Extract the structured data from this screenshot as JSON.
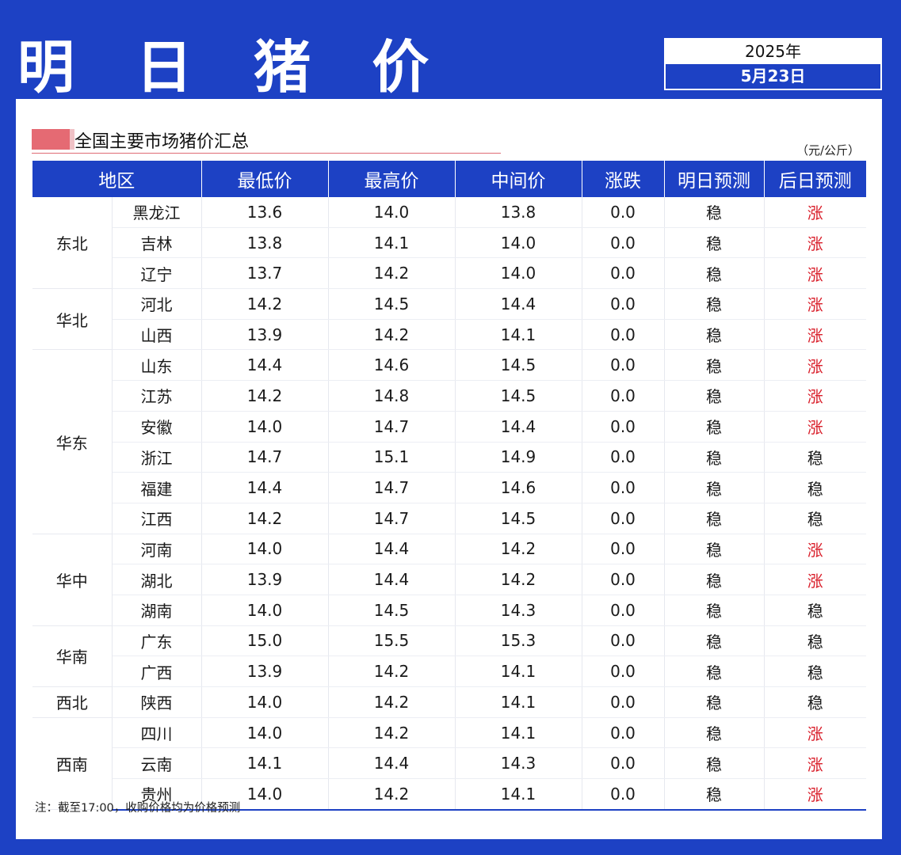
{
  "header": {
    "title": "明 日 猪 价",
    "date_year": "2025年",
    "date_day": "5月23日"
  },
  "section": {
    "subtitle": "全国主要市场猪价汇总",
    "unit": "（元/公斤）"
  },
  "table": {
    "headers": [
      "地区",
      "最低价",
      "最高价",
      "中间价",
      "涨跌",
      "明日预测",
      "后日预测"
    ],
    "rows": [
      {
        "region": "东北",
        "span": 3,
        "province": "黑龙江",
        "low": "13.6",
        "high": "14.0",
        "mid": "13.8",
        "change": "0.0",
        "tomorrow": "稳",
        "after": "涨"
      },
      {
        "province": "吉林",
        "low": "13.8",
        "high": "14.1",
        "mid": "14.0",
        "change": "0.0",
        "tomorrow": "稳",
        "after": "涨"
      },
      {
        "province": "辽宁",
        "low": "13.7",
        "high": "14.2",
        "mid": "14.0",
        "change": "0.0",
        "tomorrow": "稳",
        "after": "涨"
      },
      {
        "region": "华北",
        "span": 2,
        "province": "河北",
        "low": "14.2",
        "high": "14.5",
        "mid": "14.4",
        "change": "0.0",
        "tomorrow": "稳",
        "after": "涨"
      },
      {
        "province": "山西",
        "low": "13.9",
        "high": "14.2",
        "mid": "14.1",
        "change": "0.0",
        "tomorrow": "稳",
        "after": "涨"
      },
      {
        "region": "华东",
        "span": 6,
        "province": "山东",
        "low": "14.4",
        "high": "14.6",
        "mid": "14.5",
        "change": "0.0",
        "tomorrow": "稳",
        "after": "涨"
      },
      {
        "province": "江苏",
        "low": "14.2",
        "high": "14.8",
        "mid": "14.5",
        "change": "0.0",
        "tomorrow": "稳",
        "after": "涨"
      },
      {
        "province": "安徽",
        "low": "14.0",
        "high": "14.7",
        "mid": "14.4",
        "change": "0.0",
        "tomorrow": "稳",
        "after": "涨"
      },
      {
        "province": "浙江",
        "low": "14.7",
        "high": "15.1",
        "mid": "14.9",
        "change": "0.0",
        "tomorrow": "稳",
        "after": "稳"
      },
      {
        "province": "福建",
        "low": "14.4",
        "high": "14.7",
        "mid": "14.6",
        "change": "0.0",
        "tomorrow": "稳",
        "after": "稳"
      },
      {
        "province": "江西",
        "low": "14.2",
        "high": "14.7",
        "mid": "14.5",
        "change": "0.0",
        "tomorrow": "稳",
        "after": "稳"
      },
      {
        "region": "华中",
        "span": 3,
        "province": "河南",
        "low": "14.0",
        "high": "14.4",
        "mid": "14.2",
        "change": "0.0",
        "tomorrow": "稳",
        "after": "涨"
      },
      {
        "province": "湖北",
        "low": "13.9",
        "high": "14.4",
        "mid": "14.2",
        "change": "0.0",
        "tomorrow": "稳",
        "after": "涨"
      },
      {
        "province": "湖南",
        "low": "14.0",
        "high": "14.5",
        "mid": "14.3",
        "change": "0.0",
        "tomorrow": "稳",
        "after": "稳"
      },
      {
        "region": "华南",
        "span": 2,
        "province": "广东",
        "low": "15.0",
        "high": "15.5",
        "mid": "15.3",
        "change": "0.0",
        "tomorrow": "稳",
        "after": "稳"
      },
      {
        "province": "广西",
        "low": "13.9",
        "high": "14.2",
        "mid": "14.1",
        "change": "0.0",
        "tomorrow": "稳",
        "after": "稳"
      },
      {
        "region": "西北",
        "span": 1,
        "province": "陕西",
        "low": "14.0",
        "high": "14.2",
        "mid": "14.1",
        "change": "0.0",
        "tomorrow": "稳",
        "after": "稳"
      },
      {
        "region": "西南",
        "span": 3,
        "province": "四川",
        "low": "14.0",
        "high": "14.2",
        "mid": "14.1",
        "change": "0.0",
        "tomorrow": "稳",
        "after": "涨"
      },
      {
        "province": "云南",
        "low": "14.1",
        "high": "14.4",
        "mid": "14.3",
        "change": "0.0",
        "tomorrow": "稳",
        "after": "涨"
      },
      {
        "province": "贵州",
        "low": "14.0",
        "high": "14.2",
        "mid": "14.1",
        "change": "0.0",
        "tomorrow": "稳",
        "after": "涨"
      }
    ]
  },
  "note": "注：截至17:00，收购价格均为价格预测",
  "colors": {
    "brand_blue": "#1d41c4",
    "rise_red": "#d91e2a",
    "marker_red": "#e56a73"
  }
}
